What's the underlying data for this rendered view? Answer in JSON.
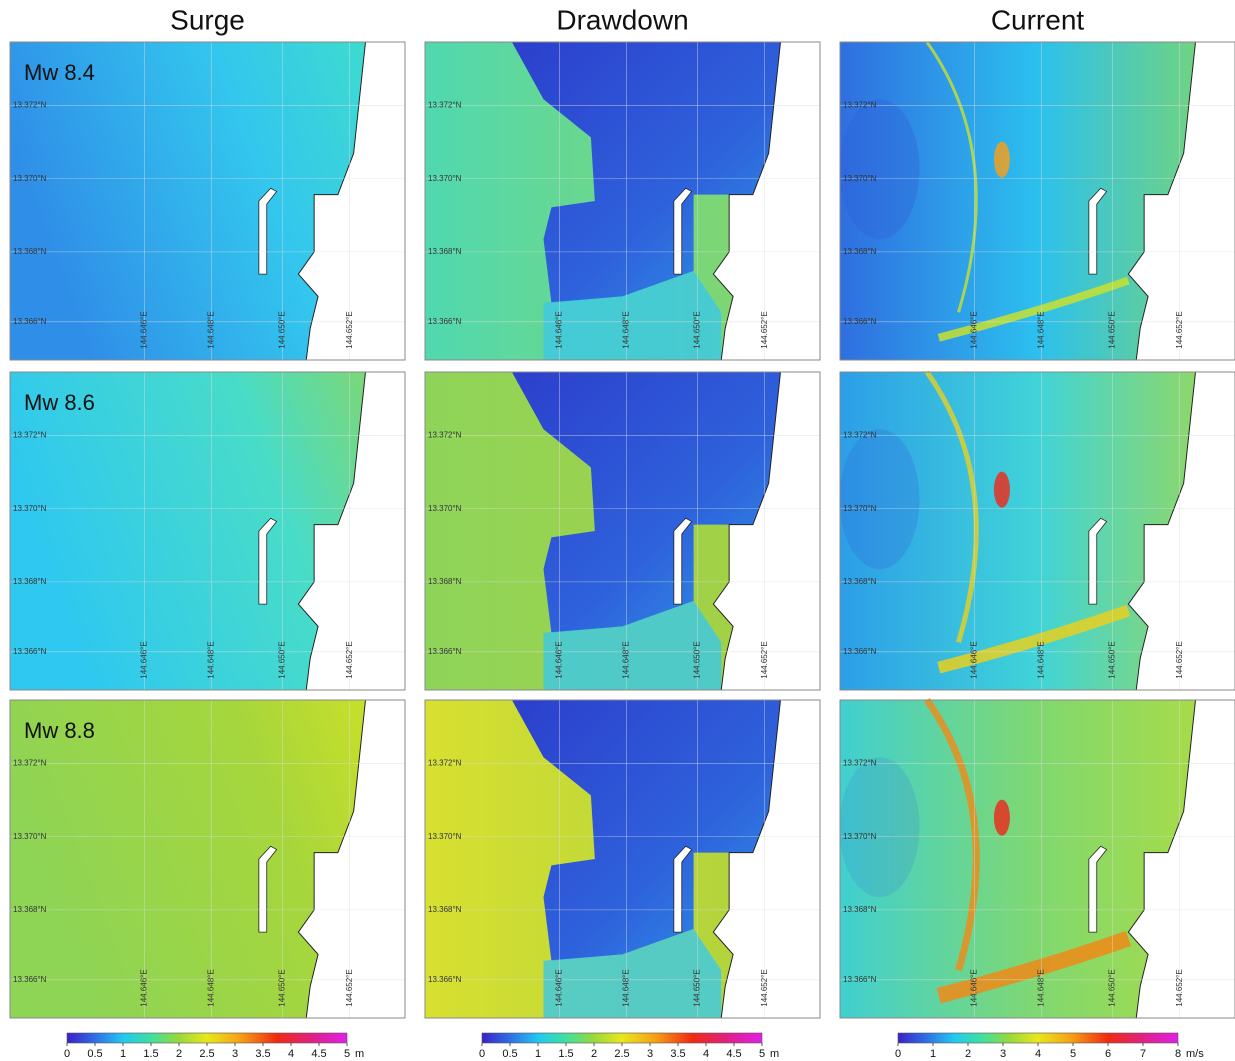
{
  "columns": [
    {
      "title": "Surge"
    },
    {
      "title": "Drawdown"
    },
    {
      "title": "Current"
    }
  ],
  "rows": [
    {
      "label": "Mw 8.4"
    },
    {
      "label": "Mw 8.6"
    },
    {
      "label": "Mw 8.8"
    }
  ],
  "latitude_labels": [
    "13.372°N",
    "13.370°N",
    "13.368°N",
    "13.366°N"
  ],
  "longitude_labels": [
    "144.646°E",
    "144.648°E",
    "144.650°E",
    "144.652°E"
  ],
  "colorbars": [
    {
      "ticks": [
        0,
        0.5,
        1,
        1.5,
        2,
        2.5,
        3,
        3.5,
        4,
        4.5,
        5
      ],
      "unit": "m"
    },
    {
      "ticks": [
        0,
        0.5,
        1,
        1.5,
        2,
        2.5,
        3,
        3.5,
        4,
        4.5,
        5
      ],
      "unit": "m"
    },
    {
      "ticks": [
        0,
        1,
        2,
        3,
        4,
        5,
        6,
        7,
        8
      ],
      "unit": "m/s"
    }
  ]
}
